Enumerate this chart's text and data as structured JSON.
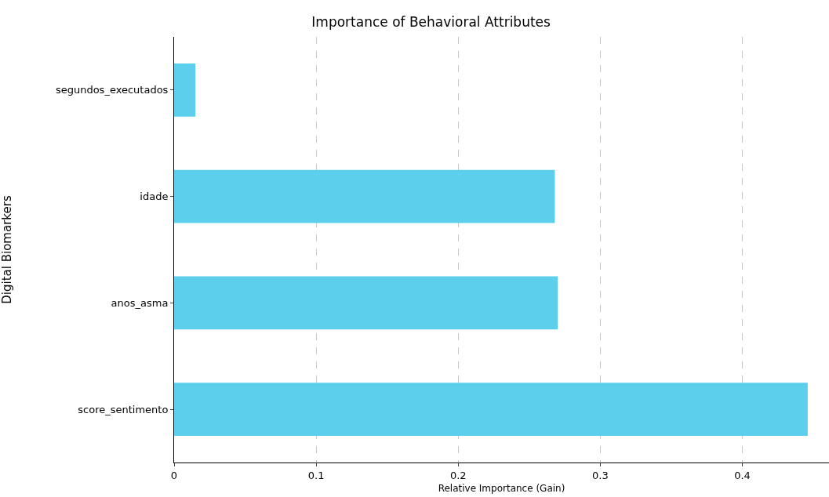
{
  "chart_data": {
    "type": "bar",
    "orientation": "horizontal",
    "title": "Importance of Behavioral Attributes",
    "xlabel": "Relative Importance (Gain)",
    "ylabel": "Digital Biomarkers",
    "categories": [
      "segundos_executados",
      "idade",
      "anos_asma",
      "score_sentimento"
    ],
    "values": [
      0.015,
      0.268,
      0.27,
      0.446
    ],
    "color": "#5bcfec",
    "xlim": [
      0,
      0.461
    ],
    "xticks": [
      0,
      0.1,
      0.2,
      0.3,
      0.4
    ],
    "grid": "x"
  }
}
